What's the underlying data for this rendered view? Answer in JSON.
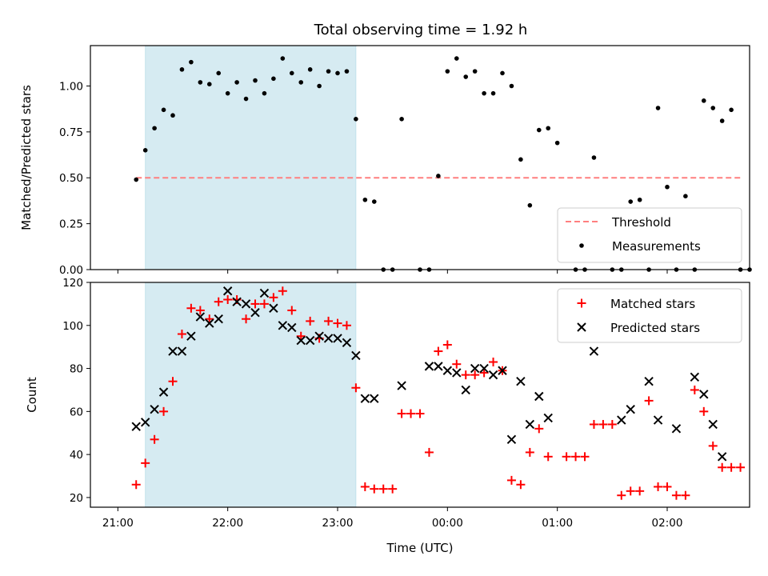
{
  "chart_data": [
    {
      "type": "scatter",
      "panel": "top",
      "title": "Total observing time = 1.92 h",
      "xlabel": "",
      "ylabel": "Matched/Predicted stars",
      "xlim_minutes_from_2100": [
        -15,
        345
      ],
      "ylim": [
        0,
        1.22
      ],
      "yticks": [
        "0.00",
        "0.25",
        "0.50",
        "0.75",
        "1.00"
      ],
      "shaded_interval": {
        "start": "21:15",
        "end": "23:10",
        "color": "#add8e6"
      },
      "threshold": {
        "name": "Threshold",
        "value": 0.5,
        "x_start": "21:10",
        "x_end": "02:40",
        "color": "#ff7f7f"
      },
      "legend_location": "lower right",
      "series": [
        {
          "name": "Measurements",
          "color": "#000000",
          "marker": "dot",
          "points": [
            [
              "21:10",
              0.49
            ],
            [
              "21:15",
              0.65
            ],
            [
              "21:20",
              0.77
            ],
            [
              "21:25",
              0.87
            ],
            [
              "21:30",
              0.84
            ],
            [
              "21:35",
              1.09
            ],
            [
              "21:40",
              1.13
            ],
            [
              "21:45",
              1.02
            ],
            [
              "21:50",
              1.01
            ],
            [
              "21:55",
              1.07
            ],
            [
              "22:00",
              0.96
            ],
            [
              "22:05",
              1.02
            ],
            [
              "22:10",
              0.93
            ],
            [
              "22:15",
              1.03
            ],
            [
              "22:20",
              0.96
            ],
            [
              "22:25",
              1.04
            ],
            [
              "22:30",
              1.15
            ],
            [
              "22:35",
              1.07
            ],
            [
              "22:40",
              1.02
            ],
            [
              "22:45",
              1.09
            ],
            [
              "22:50",
              1.0
            ],
            [
              "22:55",
              1.08
            ],
            [
              "23:00",
              1.07
            ],
            [
              "23:05",
              1.08
            ],
            [
              "23:10",
              0.82
            ],
            [
              "23:15",
              0.38
            ],
            [
              "23:20",
              0.37
            ],
            [
              "23:25",
              0.0
            ],
            [
              "23:30",
              0.0
            ],
            [
              "23:35",
              0.82
            ],
            [
              "23:45",
              0.0
            ],
            [
              "23:50",
              0.0
            ],
            [
              "23:55",
              0.51
            ],
            [
              "00:00",
              1.08
            ],
            [
              "00:05",
              1.15
            ],
            [
              "00:10",
              1.05
            ],
            [
              "00:15",
              1.08
            ],
            [
              "00:20",
              0.96
            ],
            [
              "00:25",
              0.96
            ],
            [
              "00:30",
              1.07
            ],
            [
              "00:35",
              1.0
            ],
            [
              "00:40",
              0.6
            ],
            [
              "00:45",
              0.35
            ],
            [
              "00:50",
              0.76
            ],
            [
              "00:55",
              0.77
            ],
            [
              "01:00",
              0.69
            ],
            [
              "01:10",
              0.0
            ],
            [
              "01:15",
              0.0
            ],
            [
              "01:20",
              0.61
            ],
            [
              "01:30",
              0.0
            ],
            [
              "01:35",
              0.0
            ],
            [
              "01:40",
              0.37
            ],
            [
              "01:45",
              0.38
            ],
            [
              "01:50",
              0.0
            ],
            [
              "01:55",
              0.88
            ],
            [
              "02:00",
              0.45
            ],
            [
              "02:05",
              0.0
            ],
            [
              "02:10",
              0.4
            ],
            [
              "02:15",
              0.0
            ],
            [
              "02:20",
              0.92
            ],
            [
              "02:25",
              0.88
            ],
            [
              "02:30",
              0.81
            ],
            [
              "02:35",
              0.87
            ],
            [
              "02:40",
              0.0
            ],
            [
              "02:45",
              0.0
            ]
          ]
        }
      ]
    },
    {
      "type": "scatter",
      "panel": "bottom",
      "title": "",
      "xlabel": "Time (UTC)",
      "ylabel": "Count",
      "xlim_minutes_from_2100": [
        -15,
        345
      ],
      "ylim": [
        15.5,
        120
      ],
      "yticks": [
        "20",
        "40",
        "60",
        "80",
        "100",
        "120"
      ],
      "xticks": [
        "21:00",
        "22:00",
        "23:00",
        "00:00",
        "01:00",
        "02:00"
      ],
      "shaded_interval": {
        "start": "21:15",
        "end": "23:10",
        "color": "#add8e6"
      },
      "legend_location": "upper right",
      "series": [
        {
          "name": "Matched stars",
          "color": "#ff0000",
          "marker": "plus",
          "points": [
            [
              "21:10",
              26
            ],
            [
              "21:15",
              36
            ],
            [
              "21:20",
              47
            ],
            [
              "21:25",
              60
            ],
            [
              "21:30",
              74
            ],
            [
              "21:35",
              96
            ],
            [
              "21:40",
              108
            ],
            [
              "21:45",
              107
            ],
            [
              "21:50",
              103
            ],
            [
              "21:55",
              111
            ],
            [
              "22:00",
              112
            ],
            [
              "22:05",
              112
            ],
            [
              "22:10",
              103
            ],
            [
              "22:15",
              110
            ],
            [
              "22:20",
              110
            ],
            [
              "22:25",
              113
            ],
            [
              "22:30",
              116
            ],
            [
              "22:35",
              107
            ],
            [
              "22:40",
              95
            ],
            [
              "22:45",
              102
            ],
            [
              "22:50",
              94
            ],
            [
              "22:55",
              102
            ],
            [
              "23:00",
              101
            ],
            [
              "23:05",
              100
            ],
            [
              "23:10",
              71
            ],
            [
              "23:15",
              25
            ],
            [
              "23:20",
              24
            ],
            [
              "23:25",
              24
            ],
            [
              "23:30",
              24
            ],
            [
              "23:35",
              59
            ],
            [
              "23:40",
              59
            ],
            [
              "23:45",
              59
            ],
            [
              "23:50",
              41
            ],
            [
              "23:55",
              88
            ],
            [
              "00:00",
              91
            ],
            [
              "00:05",
              82
            ],
            [
              "00:10",
              77
            ],
            [
              "00:15",
              77
            ],
            [
              "00:20",
              78
            ],
            [
              "00:25",
              83
            ],
            [
              "00:30",
              79
            ],
            [
              "00:35",
              28
            ],
            [
              "00:40",
              26
            ],
            [
              "00:45",
              41
            ],
            [
              "00:50",
              52
            ],
            [
              "00:55",
              39
            ],
            [
              "01:05",
              39
            ],
            [
              "01:10",
              39
            ],
            [
              "01:15",
              39
            ],
            [
              "01:20",
              54
            ],
            [
              "01:25",
              54
            ],
            [
              "01:30",
              54
            ],
            [
              "01:35",
              21
            ],
            [
              "01:40",
              23
            ],
            [
              "01:45",
              23
            ],
            [
              "01:50",
              65
            ],
            [
              "01:55",
              25
            ],
            [
              "02:00",
              25
            ],
            [
              "02:05",
              21
            ],
            [
              "02:10",
              21
            ],
            [
              "02:15",
              70
            ],
            [
              "02:20",
              60
            ],
            [
              "02:25",
              44
            ],
            [
              "02:30",
              34
            ],
            [
              "02:35",
              34
            ],
            [
              "02:40",
              34
            ]
          ]
        },
        {
          "name": "Predicted stars",
          "color": "#000000",
          "marker": "x",
          "points": [
            [
              "21:10",
              53
            ],
            [
              "21:15",
              55
            ],
            [
              "21:20",
              61
            ],
            [
              "21:25",
              69
            ],
            [
              "21:30",
              88
            ],
            [
              "21:35",
              88
            ],
            [
              "21:40",
              95
            ],
            [
              "21:45",
              104
            ],
            [
              "21:50",
              101
            ],
            [
              "21:55",
              103
            ],
            [
              "22:00",
              116
            ],
            [
              "22:05",
              111
            ],
            [
              "22:10",
              110
            ],
            [
              "22:15",
              106
            ],
            [
              "22:20",
              115
            ],
            [
              "22:25",
              108
            ],
            [
              "22:30",
              100
            ],
            [
              "22:35",
              99
            ],
            [
              "22:40",
              93
            ],
            [
              "22:45",
              93
            ],
            [
              "22:50",
              95
            ],
            [
              "22:55",
              94
            ],
            [
              "23:00",
              94
            ],
            [
              "23:05",
              92
            ],
            [
              "23:10",
              86
            ],
            [
              "23:15",
              66
            ],
            [
              "23:20",
              66
            ],
            [
              "23:35",
              72
            ],
            [
              "23:50",
              81
            ],
            [
              "23:55",
              81
            ],
            [
              "00:00",
              79
            ],
            [
              "00:05",
              78
            ],
            [
              "00:10",
              70
            ],
            [
              "00:15",
              80
            ],
            [
              "00:20",
              80
            ],
            [
              "00:25",
              77
            ],
            [
              "00:30",
              79
            ],
            [
              "00:35",
              47
            ],
            [
              "00:40",
              74
            ],
            [
              "00:45",
              54
            ],
            [
              "00:50",
              67
            ],
            [
              "00:55",
              57
            ],
            [
              "01:20",
              88
            ],
            [
              "01:35",
              56
            ],
            [
              "01:40",
              61
            ],
            [
              "01:50",
              74
            ],
            [
              "01:55",
              56
            ],
            [
              "02:05",
              52
            ],
            [
              "02:15",
              76
            ],
            [
              "02:20",
              68
            ],
            [
              "02:25",
              54
            ],
            [
              "02:30",
              39
            ]
          ]
        }
      ]
    }
  ]
}
